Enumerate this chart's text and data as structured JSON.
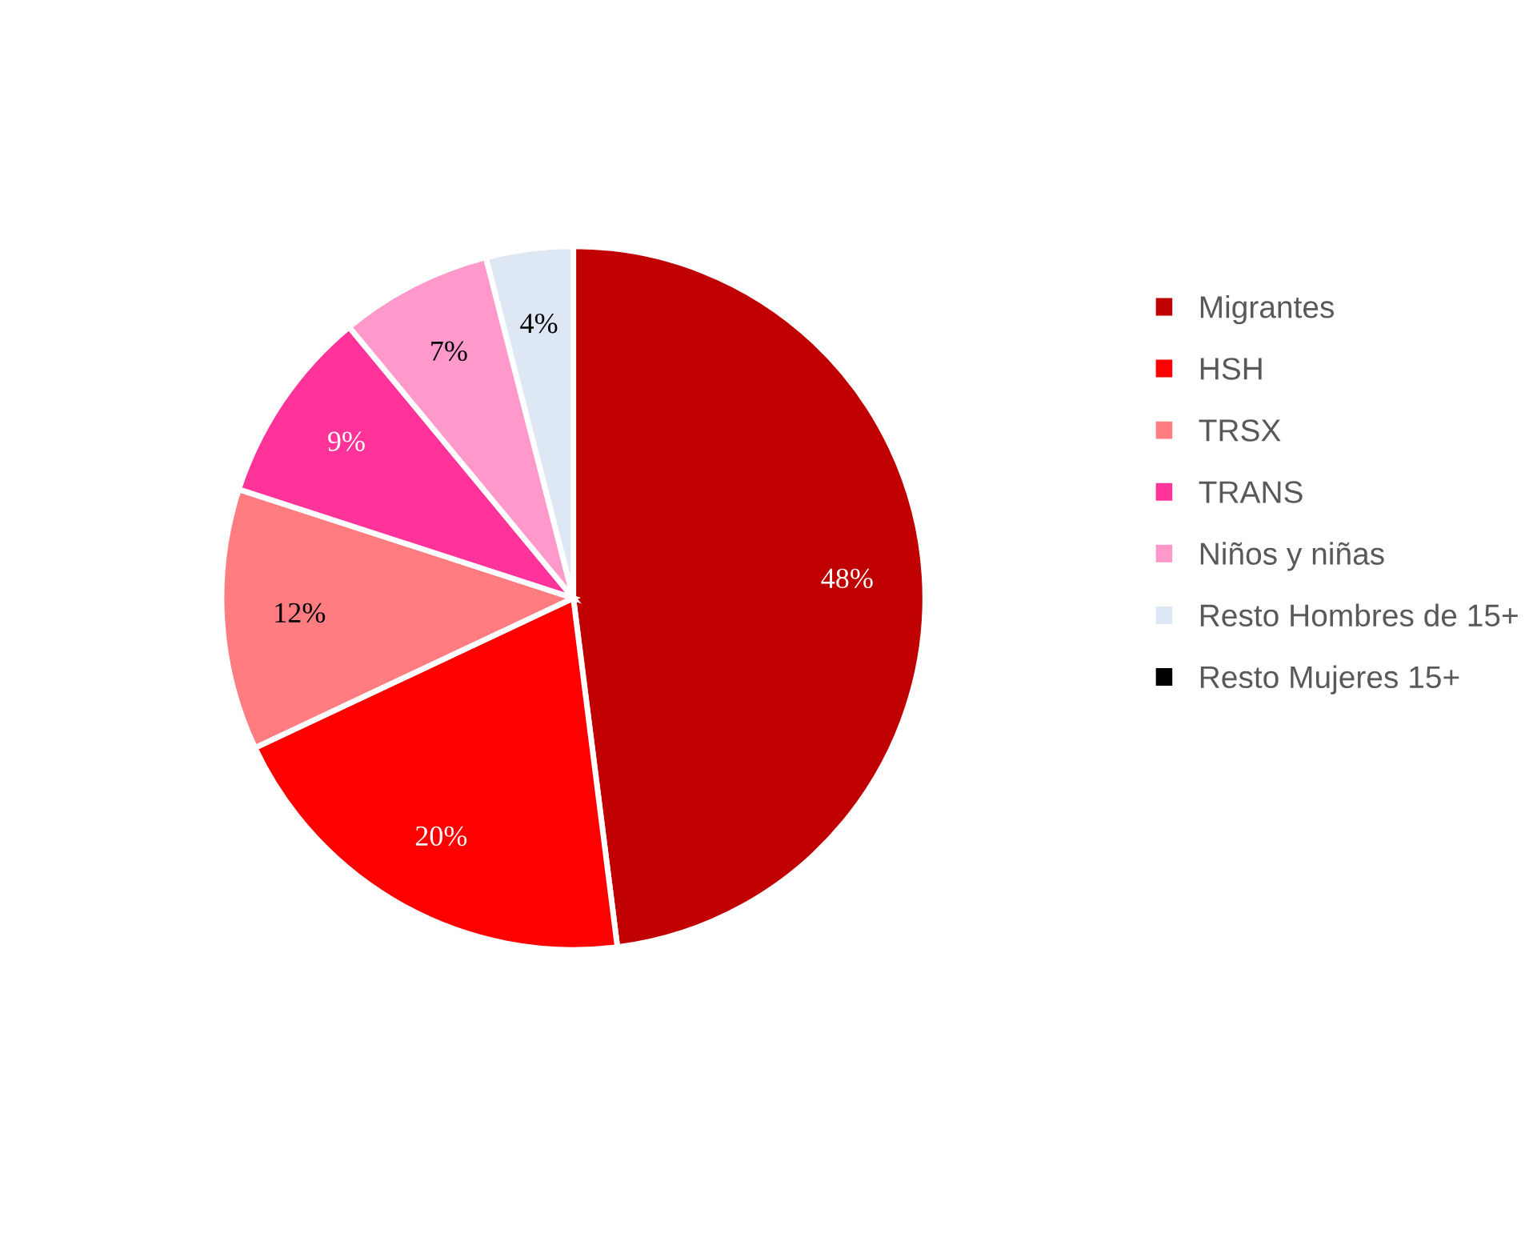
{
  "chart_data": {
    "type": "pie",
    "categories": [
      "Migrantes",
      "HSH",
      "TRSX",
      "TRANS",
      "Niños y niñas",
      "Resto Hombres de 15+",
      "Resto Mujeres 15+"
    ],
    "values": [
      48,
      20,
      12,
      9,
      7,
      4,
      0
    ],
    "colors": [
      "#c00000",
      "#ff0000",
      "#ff7c80",
      "#ff3399",
      "#ff99cc",
      "#dee8f4",
      "#000000"
    ],
    "value_labels": [
      "48%",
      "20%",
      "12%",
      "9%",
      "7%",
      "4%",
      null
    ],
    "legend": "right"
  }
}
